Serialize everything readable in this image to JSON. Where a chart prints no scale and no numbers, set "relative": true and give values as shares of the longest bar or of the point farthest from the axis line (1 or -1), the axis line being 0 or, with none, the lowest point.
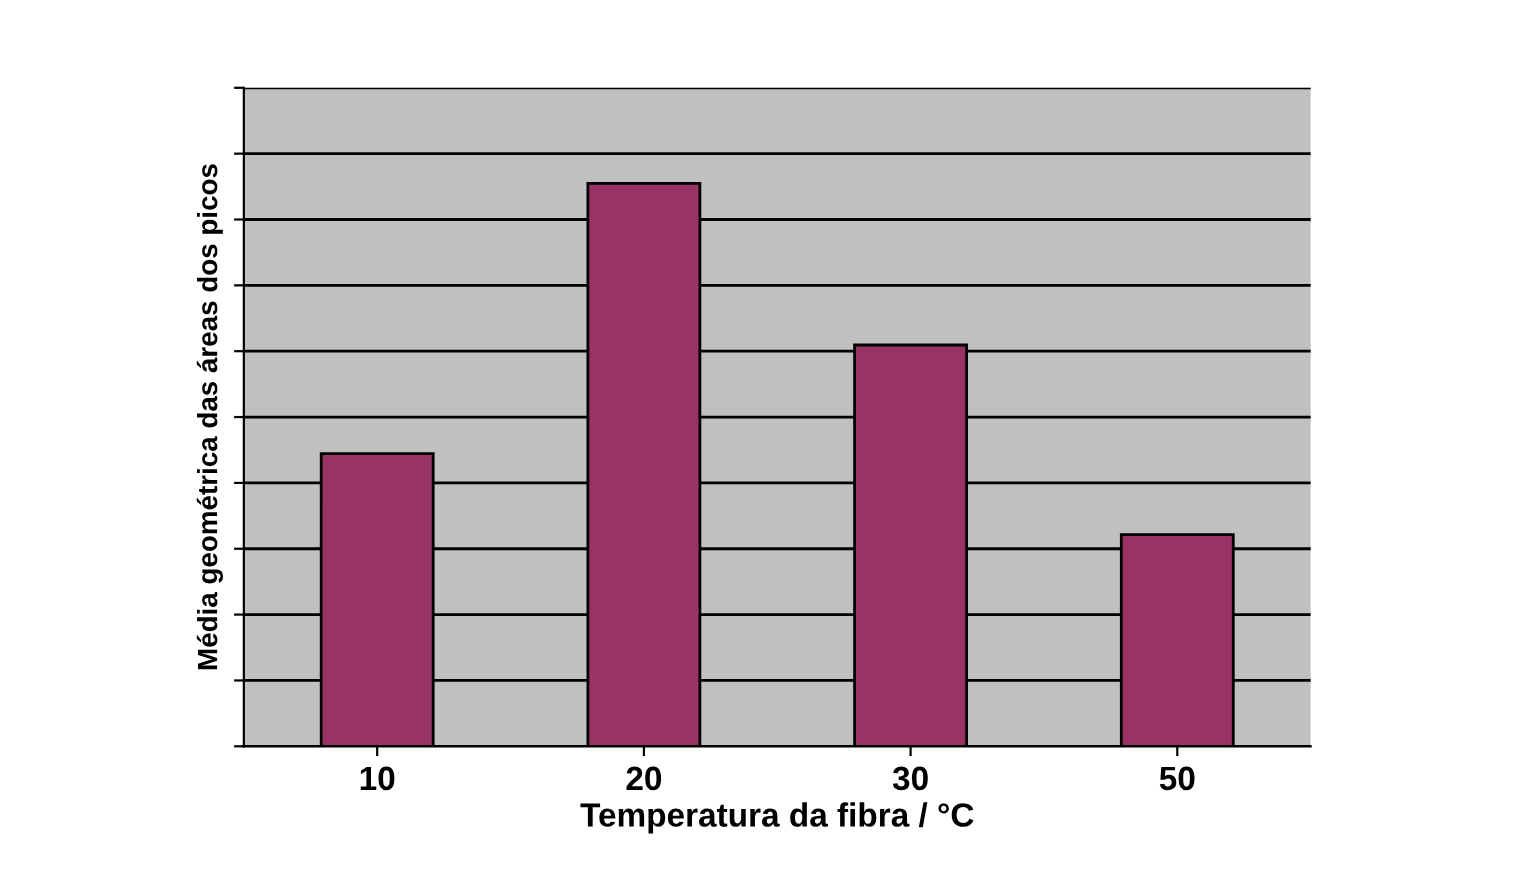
{
  "chart_data": {
    "type": "bar",
    "relative": true,
    "xlabel": "Temperatura da fibra / °C",
    "ylabel": "Média geométrica das áreas dos picos",
    "categories": [
      "10",
      "20",
      "30",
      "50"
    ],
    "series": [
      {
        "color": "#993366",
        "values": [
          0.52,
          1,
          0.713,
          0.376
        ]
      }
    ],
    "grid": "y"
  }
}
